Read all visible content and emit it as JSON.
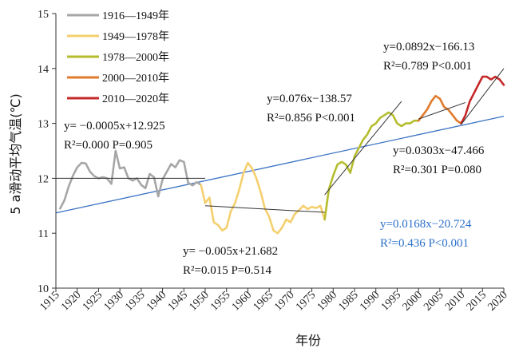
{
  "chart_data": {
    "type": "line",
    "xlabel": "年份",
    "ylabel": "5 a滑动平均气温(℃)",
    "xlim": [
      1915,
      2020
    ],
    "ylim": [
      10,
      15
    ],
    "xticks": [
      "1915",
      "1920",
      "1925",
      "1930",
      "1935",
      "1940",
      "1945",
      "1950",
      "1955",
      "1960",
      "1965",
      "1970",
      "1975",
      "1980",
      "1985",
      "1990",
      "1995",
      "2000",
      "2005",
      "2010",
      "2015",
      "2020"
    ],
    "yticks": [
      "10",
      "11",
      "12",
      "13",
      "14",
      "15"
    ],
    "legend_position": "top-left",
    "series": [
      {
        "name": "1916—1949年",
        "color": "#a6a6a6",
        "points": [
          [
            1916,
            11.45
          ],
          [
            1917,
            11.6
          ],
          [
            1918,
            11.85
          ],
          [
            1919,
            12.05
          ],
          [
            1920,
            12.2
          ],
          [
            1921,
            12.28
          ],
          [
            1922,
            12.27
          ],
          [
            1923,
            12.12
          ],
          [
            1924,
            12.04
          ],
          [
            1925,
            12.0
          ],
          [
            1926,
            12.02
          ],
          [
            1927,
            12.0
          ],
          [
            1928,
            11.9
          ],
          [
            1929,
            12.5
          ],
          [
            1930,
            12.18
          ],
          [
            1931,
            12.2
          ],
          [
            1932,
            12.0
          ],
          [
            1933,
            11.96
          ],
          [
            1934,
            12.0
          ],
          [
            1935,
            11.88
          ],
          [
            1936,
            11.82
          ],
          [
            1937,
            12.08
          ],
          [
            1938,
            12.02
          ],
          [
            1939,
            11.67
          ],
          [
            1940,
            11.98
          ],
          [
            1941,
            12.12
          ],
          [
            1942,
            12.26
          ],
          [
            1943,
            12.2
          ],
          [
            1944,
            12.33
          ],
          [
            1945,
            12.3
          ],
          [
            1946,
            11.92
          ],
          [
            1947,
            11.87
          ],
          [
            1948,
            11.93
          ],
          [
            1949,
            11.88
          ]
        ]
      },
      {
        "name": "1949—1978年",
        "color": "#f5cf6e",
        "points": [
          [
            1949,
            11.88
          ],
          [
            1950,
            11.55
          ],
          [
            1951,
            11.65
          ],
          [
            1952,
            11.2
          ],
          [
            1953,
            11.15
          ],
          [
            1954,
            11.05
          ],
          [
            1955,
            11.1
          ],
          [
            1956,
            11.4
          ],
          [
            1957,
            11.55
          ],
          [
            1958,
            11.8
          ],
          [
            1959,
            12.1
          ],
          [
            1960,
            12.28
          ],
          [
            1961,
            12.18
          ],
          [
            1962,
            12.0
          ],
          [
            1963,
            11.75
          ],
          [
            1964,
            11.45
          ],
          [
            1965,
            11.3
          ],
          [
            1966,
            11.05
          ],
          [
            1967,
            11.0
          ],
          [
            1968,
            11.1
          ],
          [
            1969,
            11.25
          ],
          [
            1970,
            11.2
          ],
          [
            1971,
            11.35
          ],
          [
            1972,
            11.42
          ],
          [
            1973,
            11.5
          ],
          [
            1974,
            11.44
          ],
          [
            1975,
            11.48
          ],
          [
            1976,
            11.46
          ],
          [
            1977,
            11.5
          ],
          [
            1978,
            11.25
          ]
        ]
      },
      {
        "name": "1978—2000年",
        "color": "#b5bd2e",
        "points": [
          [
            1978,
            11.25
          ],
          [
            1979,
            11.8
          ],
          [
            1980,
            12.05
          ],
          [
            1981,
            12.25
          ],
          [
            1982,
            12.3
          ],
          [
            1983,
            12.25
          ],
          [
            1984,
            12.1
          ],
          [
            1985,
            12.4
          ],
          [
            1986,
            12.55
          ],
          [
            1987,
            12.7
          ],
          [
            1988,
            12.8
          ],
          [
            1989,
            12.95
          ],
          [
            1990,
            13.0
          ],
          [
            1991,
            13.1
          ],
          [
            1992,
            13.15
          ],
          [
            1993,
            13.2
          ],
          [
            1994,
            13.15
          ],
          [
            1995,
            13.0
          ],
          [
            1996,
            12.95
          ],
          [
            1997,
            13.0
          ],
          [
            1998,
            13.0
          ],
          [
            1999,
            13.05
          ],
          [
            2000,
            13.05
          ]
        ]
      },
      {
        "name": "2000—2010年",
        "color": "#e07b2d",
        "points": [
          [
            2000,
            13.05
          ],
          [
            2001,
            13.15
          ],
          [
            2002,
            13.25
          ],
          [
            2003,
            13.4
          ],
          [
            2004,
            13.5
          ],
          [
            2005,
            13.45
          ],
          [
            2006,
            13.3
          ],
          [
            2007,
            13.25
          ],
          [
            2008,
            13.15
          ],
          [
            2009,
            13.05
          ],
          [
            2010,
            13.0
          ]
        ]
      },
      {
        "name": "2010—2020年",
        "color": "#c62828",
        "points": [
          [
            2010,
            13.0
          ],
          [
            2011,
            13.15
          ],
          [
            2012,
            13.4
          ],
          [
            2013,
            13.55
          ],
          [
            2014,
            13.7
          ],
          [
            2015,
            13.85
          ],
          [
            2016,
            13.85
          ],
          [
            2017,
            13.8
          ],
          [
            2018,
            13.85
          ],
          [
            2019,
            13.8
          ],
          [
            2020,
            13.7
          ]
        ]
      }
    ],
    "overall_trend": {
      "color": "#3a72c4",
      "x": [
        1915,
        2020
      ],
      "y": [
        11.37,
        13.13
      ]
    },
    "segment_trends": [
      {
        "x": [
          1915,
          1950
        ],
        "y": [
          12.0,
          12.0
        ],
        "color": "#333333"
      },
      {
        "x": [
          1950,
          1978
        ],
        "y": [
          11.5,
          11.38
        ],
        "color": "#333333"
      },
      {
        "x": [
          1978,
          1996
        ],
        "y": [
          11.7,
          13.4
        ],
        "color": "#333333",
        "dashed": true
      },
      {
        "x": [
          2000,
          2011
        ],
        "y": [
          13.08,
          13.38
        ],
        "color": "#333333",
        "dashed": true
      },
      {
        "x": [
          2010,
          2020
        ],
        "y": [
          12.98,
          14.0
        ],
        "color": "#333333",
        "dashed": true
      }
    ],
    "annotations": [
      {
        "line1": "y= −0.0005x+12.925",
        "line2": "R²=0.000   P=0.905",
        "color": "#111111"
      },
      {
        "line1": "y= −0.005x+21.682",
        "line2": "R²=0.015   P=0.514",
        "color": "#111111"
      },
      {
        "line1": "y=0.076x−138.57",
        "line2": "R²=0.856   P<0.001",
        "color": "#111111"
      },
      {
        "line1": "y=0.0892x−166.13",
        "line2": "R²=0.789   P<0.001",
        "color": "#111111"
      },
      {
        "line1": "y=0.0303x−47.466",
        "line2": "R²=0.301   P=0.080",
        "color": "#111111"
      },
      {
        "line1": "y=0.0168x−20.724",
        "line2": "R²=0.436   P<0.001",
        "color": "#2a6fc9"
      }
    ]
  }
}
